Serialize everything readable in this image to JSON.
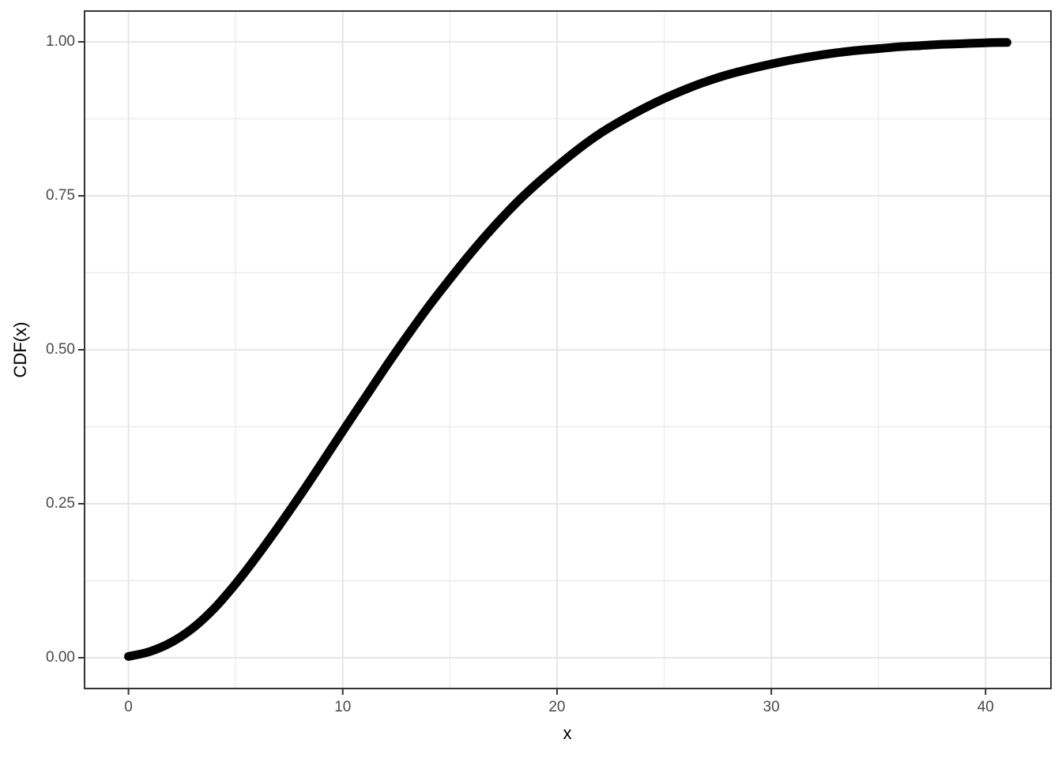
{
  "chart_data": {
    "type": "line",
    "title": "",
    "xlabel": "x",
    "ylabel": "CDF(x)",
    "x_ticks": [
      0,
      10,
      20,
      30,
      40
    ],
    "x_tick_labels": [
      "0",
      "10",
      "20",
      "30",
      "40"
    ],
    "y_ticks": [
      0.0,
      0.25,
      0.5,
      0.75,
      1.0
    ],
    "y_tick_labels": [
      "0.00",
      "0.25",
      "0.50",
      "0.75",
      "1.00"
    ],
    "x_minor_ticks": [
      5,
      15,
      25,
      35
    ],
    "y_minor_ticks": [
      0.125,
      0.375,
      0.625,
      0.875
    ],
    "xlim": [
      -2.05,
      43.05
    ],
    "ylim": [
      -0.05,
      1.05
    ],
    "grid": true,
    "legend": false,
    "series": [
      {
        "name": "CDF",
        "x": [
          0,
          1,
          2,
          3,
          4,
          5,
          6,
          7,
          8,
          9,
          10,
          11,
          12,
          13,
          14,
          15,
          16,
          17,
          18,
          19,
          20,
          21,
          22,
          23,
          24,
          25,
          26,
          27,
          28,
          29,
          30,
          31,
          32,
          33,
          34,
          35,
          36,
          37,
          38,
          39,
          40,
          41
        ],
        "y": [
          0.002,
          0.01,
          0.025,
          0.048,
          0.08,
          0.12,
          0.165,
          0.213,
          0.263,
          0.315,
          0.368,
          0.42,
          0.472,
          0.522,
          0.57,
          0.615,
          0.658,
          0.698,
          0.735,
          0.768,
          0.798,
          0.826,
          0.851,
          0.872,
          0.891,
          0.908,
          0.923,
          0.936,
          0.947,
          0.956,
          0.964,
          0.971,
          0.977,
          0.982,
          0.986,
          0.989,
          0.992,
          0.994,
          0.996,
          0.997,
          0.9985,
          0.999
        ]
      }
    ],
    "colors": {
      "curve": "#000000",
      "grid_major": "#e6e6e6",
      "grid_minor": "#ededed",
      "panel_border": "#333333",
      "tick_mark": "#333333",
      "axis_text": "#4a4a4a",
      "axis_title": "#000000",
      "background": "#ffffff"
    },
    "line_width": 11
  }
}
